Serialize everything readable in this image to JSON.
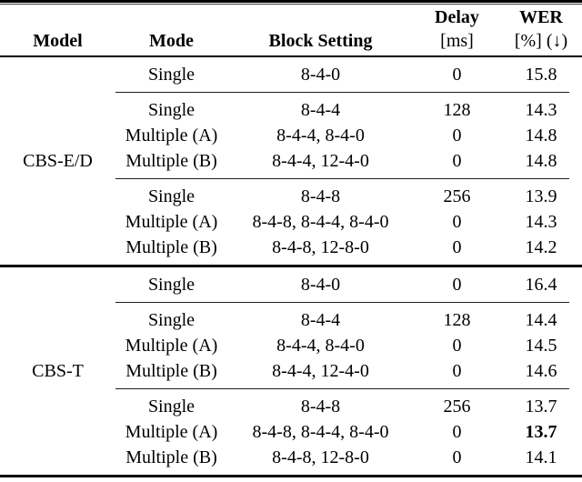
{
  "page": {
    "background": "#ffffff",
    "text_color": "#000000",
    "rule_color": "#000000"
  },
  "table": {
    "columns": {
      "model": "Model",
      "mode": "Mode",
      "block_setting": "Block Setting",
      "delay_line1": "Delay",
      "delay_line2": "[ms]",
      "wer_line1": "WER",
      "wer_line2": "[%] (↓)"
    },
    "groups": [
      {
        "model": "CBS-E/D",
        "subgroups": [
          {
            "rows": [
              {
                "mode": "Single",
                "block_setting": "8-4-0",
                "delay": "0",
                "wer": "15.8",
                "wer_bold": false
              }
            ]
          },
          {
            "rows": [
              {
                "mode": "Single",
                "block_setting": "8-4-4",
                "delay": "128",
                "wer": "14.3",
                "wer_bold": false
              },
              {
                "mode": "Multiple (A)",
                "block_setting": "8-4-4, 8-4-0",
                "delay": "0",
                "wer": "14.8",
                "wer_bold": false
              },
              {
                "mode": "Multiple (B)",
                "block_setting": "8-4-4, 12-4-0",
                "delay": "0",
                "wer": "14.8",
                "wer_bold": false
              }
            ]
          },
          {
            "rows": [
              {
                "mode": "Single",
                "block_setting": "8-4-8",
                "delay": "256",
                "wer": "13.9",
                "wer_bold": false
              },
              {
                "mode": "Multiple (A)",
                "block_setting": "8-4-8, 8-4-4, 8-4-0",
                "delay": "0",
                "wer": "14.3",
                "wer_bold": false
              },
              {
                "mode": "Multiple (B)",
                "block_setting": "8-4-8, 12-8-0",
                "delay": "0",
                "wer": "14.2",
                "wer_bold": false
              }
            ]
          }
        ]
      },
      {
        "model": "CBS-T",
        "subgroups": [
          {
            "rows": [
              {
                "mode": "Single",
                "block_setting": "8-4-0",
                "delay": "0",
                "wer": "16.4",
                "wer_bold": false
              }
            ]
          },
          {
            "rows": [
              {
                "mode": "Single",
                "block_setting": "8-4-4",
                "delay": "128",
                "wer": "14.4",
                "wer_bold": false
              },
              {
                "mode": "Multiple (A)",
                "block_setting": "8-4-4, 8-4-0",
                "delay": "0",
                "wer": "14.5",
                "wer_bold": false
              },
              {
                "mode": "Multiple (B)",
                "block_setting": "8-4-4, 12-4-0",
                "delay": "0",
                "wer": "14.6",
                "wer_bold": false
              }
            ]
          },
          {
            "rows": [
              {
                "mode": "Single",
                "block_setting": "8-4-8",
                "delay": "256",
                "wer": "13.7",
                "wer_bold": false
              },
              {
                "mode": "Multiple (A)",
                "block_setting": "8-4-8, 8-4-4, 8-4-0",
                "delay": "0",
                "wer": "13.7",
                "wer_bold": true
              },
              {
                "mode": "Multiple (B)",
                "block_setting": "8-4-8, 12-8-0",
                "delay": "0",
                "wer": "14.1",
                "wer_bold": false
              }
            ]
          }
        ]
      }
    ]
  }
}
